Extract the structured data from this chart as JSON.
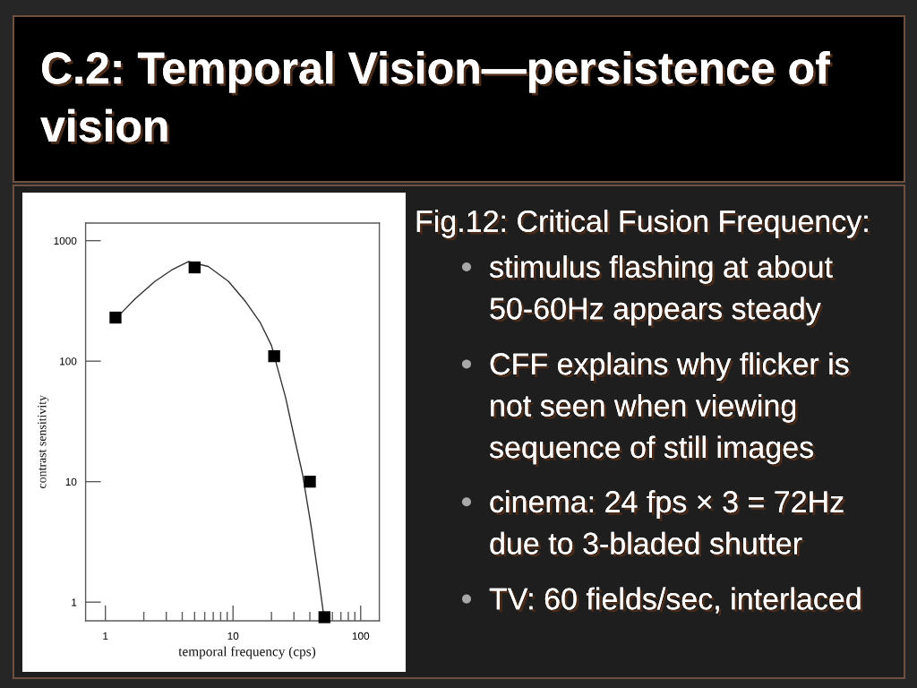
{
  "chart_data": {
    "type": "scatter",
    "title": "C.2: Temporal Vision—persistence of vision",
    "xlabel": "temporal frequency (cps)",
    "ylabel": "contrast sensitivity",
    "annotations": [
      "Fig.12: Critical Fusion Frequency:",
      "stimulus flashing at about 50-60Hz appears steady",
      "CFF explains why flicker is not seen when viewing sequence of still images",
      "cinema: 24 fps × 3 = 72Hz due to 3-bladed shutter",
      "TV: 60 fields/sec, interlaced"
    ],
    "log": "xy",
    "xlim": [
      0.7,
      140
    ],
    "ylim": [
      0.7,
      1400
    ],
    "xticks": [
      1,
      10,
      100
    ],
    "yticks": [
      1,
      10,
      100,
      1000
    ],
    "marker": "square",
    "series": [
      {
        "color": "#000000",
        "x": [
          1.2,
          5,
          21,
          40,
          52
        ],
        "values": [
          230,
          600,
          110,
          10,
          0.75
        ]
      },
      {
        "type": "line",
        "color": "#333333",
        "marker": "none",
        "line_style": "solid",
        "x": [
          1.33,
          1.71,
          2.45,
          3.3,
          4.46,
          6.4,
          9.2,
          12.6,
          16.3,
          20,
          22.1,
          25.8,
          30,
          35,
          41,
          47.6,
          51.4
        ],
        "values": [
          250,
          330,
          460,
          570,
          670,
          610,
          460,
          310,
          210,
          135,
          91,
          50,
          24,
          11.6,
          4.2,
          1.4,
          0.77
        ]
      }
    ]
  }
}
